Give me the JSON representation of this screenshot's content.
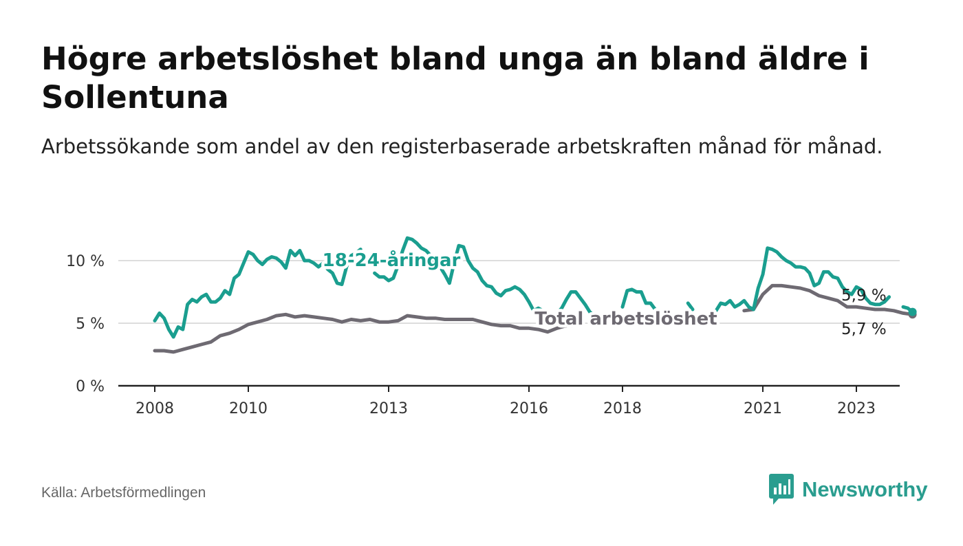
{
  "header": {
    "title": "Högre arbetslöshet bland unga än bland äldre i Sollentuna",
    "subtitle": "Arbetssökande som andel av den registerbaserade arbetskraften månad för månad."
  },
  "colors": {
    "youth": "#1a9e8f",
    "total": "#6e6a72",
    "grid": "#dddddd",
    "axis": "#222222",
    "brand": "#2a9d8f"
  },
  "chart_data": {
    "type": "line",
    "title": "Högre arbetslöshet bland unga än bland äldre i Sollentuna",
    "xlabel": "",
    "ylabel": "",
    "xlim": [
      2008,
      2024
    ],
    "ylim": [
      0,
      13
    ],
    "x_ticks": [
      2008,
      2010,
      2013,
      2016,
      2018,
      2021,
      2023
    ],
    "y_ticks": [
      {
        "value": 0,
        "label": "0 %"
      },
      {
        "value": 5,
        "label": "5 %"
      },
      {
        "value": 10,
        "label": "10 %"
      }
    ],
    "grid": true,
    "series": [
      {
        "name": "18-24-åringar",
        "color": "#1a9e8f",
        "end_label": "5,9 %",
        "points": [
          [
            2008.0,
            5.2
          ],
          [
            2008.1,
            5.8
          ],
          [
            2008.2,
            5.4
          ],
          [
            2008.3,
            4.5
          ],
          [
            2008.4,
            3.9
          ],
          [
            2008.5,
            4.7
          ],
          [
            2008.6,
            4.5
          ],
          [
            2008.7,
            6.5
          ],
          [
            2008.8,
            6.9
          ],
          [
            2008.9,
            6.7
          ],
          [
            2009.0,
            7.1
          ],
          [
            2009.1,
            7.3
          ],
          [
            2009.2,
            6.7
          ],
          [
            2009.3,
            6.7
          ],
          [
            2009.4,
            7.0
          ],
          [
            2009.5,
            7.6
          ],
          [
            2009.6,
            7.3
          ],
          [
            2009.7,
            8.6
          ],
          [
            2009.8,
            8.9
          ],
          [
            2009.9,
            9.8
          ],
          [
            2010.0,
            10.7
          ],
          [
            2010.1,
            10.5
          ],
          [
            2010.2,
            10.0
          ],
          [
            2010.3,
            9.7
          ],
          [
            2010.4,
            10.1
          ],
          [
            2010.5,
            10.3
          ],
          [
            2010.6,
            10.2
          ],
          [
            2010.7,
            9.9
          ],
          [
            2010.8,
            9.4
          ],
          [
            2010.9,
            10.8
          ],
          [
            2011.0,
            10.4
          ],
          [
            2011.1,
            10.8
          ],
          [
            2011.2,
            10.0
          ],
          [
            2011.3,
            10.0
          ],
          [
            2011.4,
            9.8
          ],
          [
            2011.5,
            9.5
          ],
          [
            2011.6,
            9.8
          ],
          [
            2011.7,
            9.3
          ],
          [
            2011.8,
            9.0
          ],
          [
            2011.9,
            8.2
          ],
          [
            2012.0,
            8.1
          ],
          [
            2012.1,
            9.5
          ],
          [
            2012.2,
            10.4
          ],
          [
            2012.3,
            10.6
          ],
          [
            2012.4,
            10.9
          ],
          [
            2012.7,
            9.0
          ],
          [
            2012.8,
            8.7
          ],
          [
            2012.9,
            8.7
          ],
          [
            2013.0,
            8.4
          ],
          [
            2013.1,
            8.6
          ],
          [
            2013.2,
            9.6
          ],
          [
            2013.3,
            10.8
          ],
          [
            2013.4,
            11.8
          ],
          [
            2013.5,
            11.7
          ],
          [
            2013.6,
            11.4
          ],
          [
            2013.7,
            11.0
          ],
          [
            2013.8,
            10.8
          ],
          [
            2013.9,
            10.4
          ],
          [
            2014.0,
            9.9
          ],
          [
            2014.1,
            9.5
          ],
          [
            2014.2,
            8.9
          ],
          [
            2014.3,
            8.2
          ],
          [
            2014.4,
            9.8
          ],
          [
            2014.5,
            11.2
          ],
          [
            2014.6,
            11.1
          ],
          [
            2014.7,
            10.0
          ],
          [
            2014.8,
            9.4
          ],
          [
            2014.9,
            9.1
          ],
          [
            2015.0,
            8.4
          ],
          [
            2015.1,
            8.0
          ],
          [
            2015.2,
            7.9
          ],
          [
            2015.3,
            7.4
          ],
          [
            2015.4,
            7.2
          ],
          [
            2015.5,
            7.6
          ],
          [
            2015.6,
            7.7
          ],
          [
            2015.7,
            7.9
          ],
          [
            2015.8,
            7.7
          ],
          [
            2015.9,
            7.3
          ],
          [
            2016.0,
            6.7
          ],
          [
            2016.1,
            6.0
          ],
          [
            2016.2,
            6.2
          ],
          [
            2016.3,
            6.0
          ],
          [
            2016.4,
            5.6
          ],
          [
            2016.5,
            5.4
          ],
          [
            2016.6,
            5.8
          ],
          [
            2016.7,
            6.2
          ],
          [
            2016.8,
            6.9
          ],
          [
            2016.9,
            7.5
          ],
          [
            2017.0,
            7.5
          ],
          [
            2017.1,
            7.0
          ],
          [
            2017.2,
            6.5
          ],
          [
            2017.3,
            5.9
          ],
          [
            2017.4,
            5.6
          ],
          [
            2017.5,
            5.7
          ],
          [
            2018.0,
            6.3
          ],
          [
            2018.1,
            7.6
          ],
          [
            2018.2,
            7.7
          ],
          [
            2018.3,
            7.5
          ],
          [
            2018.4,
            7.5
          ],
          [
            2018.5,
            6.6
          ],
          [
            2018.6,
            6.6
          ],
          [
            2018.7,
            6.1
          ],
          [
            2019.4,
            6.6
          ],
          [
            2019.5,
            6.1
          ],
          [
            2020.0,
            6.0
          ],
          [
            2020.1,
            6.6
          ],
          [
            2020.2,
            6.5
          ],
          [
            2020.3,
            6.8
          ],
          [
            2020.4,
            6.3
          ],
          [
            2020.5,
            6.5
          ],
          [
            2020.6,
            6.8
          ],
          [
            2020.7,
            6.3
          ],
          [
            2020.8,
            6.1
          ],
          [
            2020.9,
            7.8
          ],
          [
            2021.0,
            8.9
          ],
          [
            2021.1,
            11.0
          ],
          [
            2021.2,
            10.9
          ],
          [
            2021.3,
            10.7
          ],
          [
            2021.4,
            10.3
          ],
          [
            2021.5,
            10.0
          ],
          [
            2021.6,
            9.8
          ],
          [
            2021.7,
            9.5
          ],
          [
            2021.8,
            9.5
          ],
          [
            2021.9,
            9.4
          ],
          [
            2022.0,
            9.0
          ],
          [
            2022.1,
            8.0
          ],
          [
            2022.2,
            8.2
          ],
          [
            2022.3,
            9.1
          ],
          [
            2022.4,
            9.1
          ],
          [
            2022.5,
            8.7
          ],
          [
            2022.6,
            8.6
          ],
          [
            2022.7,
            7.9
          ],
          [
            2022.8,
            7.5
          ],
          [
            2022.9,
            7.3
          ],
          [
            2023.0,
            7.9
          ],
          [
            2023.1,
            7.7
          ],
          [
            2023.2,
            7.0
          ],
          [
            2023.3,
            6.6
          ],
          [
            2023.4,
            6.5
          ],
          [
            2023.5,
            6.5
          ],
          [
            2023.6,
            6.7
          ],
          [
            2023.7,
            7.1
          ],
          [
            2024.0,
            6.3
          ],
          [
            2024.1,
            6.2
          ],
          [
            2024.2,
            5.9
          ]
        ]
      },
      {
        "name": "Total arbetslöshet",
        "color": "#6e6a72",
        "end_label": "5,7 %",
        "points": [
          [
            2008.0,
            2.8
          ],
          [
            2008.2,
            2.8
          ],
          [
            2008.4,
            2.7
          ],
          [
            2008.6,
            2.9
          ],
          [
            2008.8,
            3.1
          ],
          [
            2009.0,
            3.3
          ],
          [
            2009.2,
            3.5
          ],
          [
            2009.4,
            4.0
          ],
          [
            2009.6,
            4.2
          ],
          [
            2009.8,
            4.5
          ],
          [
            2010.0,
            4.9
          ],
          [
            2010.2,
            5.1
          ],
          [
            2010.4,
            5.3
          ],
          [
            2010.6,
            5.6
          ],
          [
            2010.8,
            5.7
          ],
          [
            2011.0,
            5.5
          ],
          [
            2011.2,
            5.6
          ],
          [
            2011.4,
            5.5
          ],
          [
            2011.6,
            5.4
          ],
          [
            2011.8,
            5.3
          ],
          [
            2012.0,
            5.1
          ],
          [
            2012.2,
            5.3
          ],
          [
            2012.4,
            5.2
          ],
          [
            2012.6,
            5.3
          ],
          [
            2012.8,
            5.1
          ],
          [
            2013.0,
            5.1
          ],
          [
            2013.2,
            5.2
          ],
          [
            2013.4,
            5.6
          ],
          [
            2013.6,
            5.5
          ],
          [
            2013.8,
            5.4
          ],
          [
            2014.0,
            5.4
          ],
          [
            2014.2,
            5.3
          ],
          [
            2014.4,
            5.3
          ],
          [
            2014.6,
            5.3
          ],
          [
            2014.8,
            5.3
          ],
          [
            2015.0,
            5.1
          ],
          [
            2015.2,
            4.9
          ],
          [
            2015.4,
            4.8
          ],
          [
            2015.6,
            4.8
          ],
          [
            2015.8,
            4.6
          ],
          [
            2016.0,
            4.6
          ],
          [
            2016.2,
            4.5
          ],
          [
            2016.4,
            4.3
          ],
          [
            2016.6,
            4.6
          ],
          [
            2016.8,
            4.8
          ],
          [
            2017.0,
            4.8
          ],
          [
            2020.6,
            6.0
          ],
          [
            2020.8,
            6.1
          ],
          [
            2021.0,
            7.3
          ],
          [
            2021.2,
            8.0
          ],
          [
            2021.4,
            8.0
          ],
          [
            2021.6,
            7.9
          ],
          [
            2021.8,
            7.8
          ],
          [
            2022.0,
            7.6
          ],
          [
            2022.2,
            7.2
          ],
          [
            2022.4,
            7.0
          ],
          [
            2022.6,
            6.8
          ],
          [
            2022.8,
            6.3
          ],
          [
            2023.0,
            6.3
          ],
          [
            2023.2,
            6.2
          ],
          [
            2023.4,
            6.1
          ],
          [
            2023.6,
            6.1
          ],
          [
            2023.8,
            6.0
          ],
          [
            2024.0,
            5.8
          ],
          [
            2024.2,
            5.7
          ]
        ]
      }
    ],
    "annotations": [
      {
        "text": "18-24-åringar",
        "series": "18-24-åringar"
      },
      {
        "text": "Total arbetslöshet",
        "series": "Total arbetslöshet"
      }
    ]
  },
  "footer": {
    "source": "Källa: Arbetsförmedlingen",
    "brand": "Newsworthy"
  }
}
